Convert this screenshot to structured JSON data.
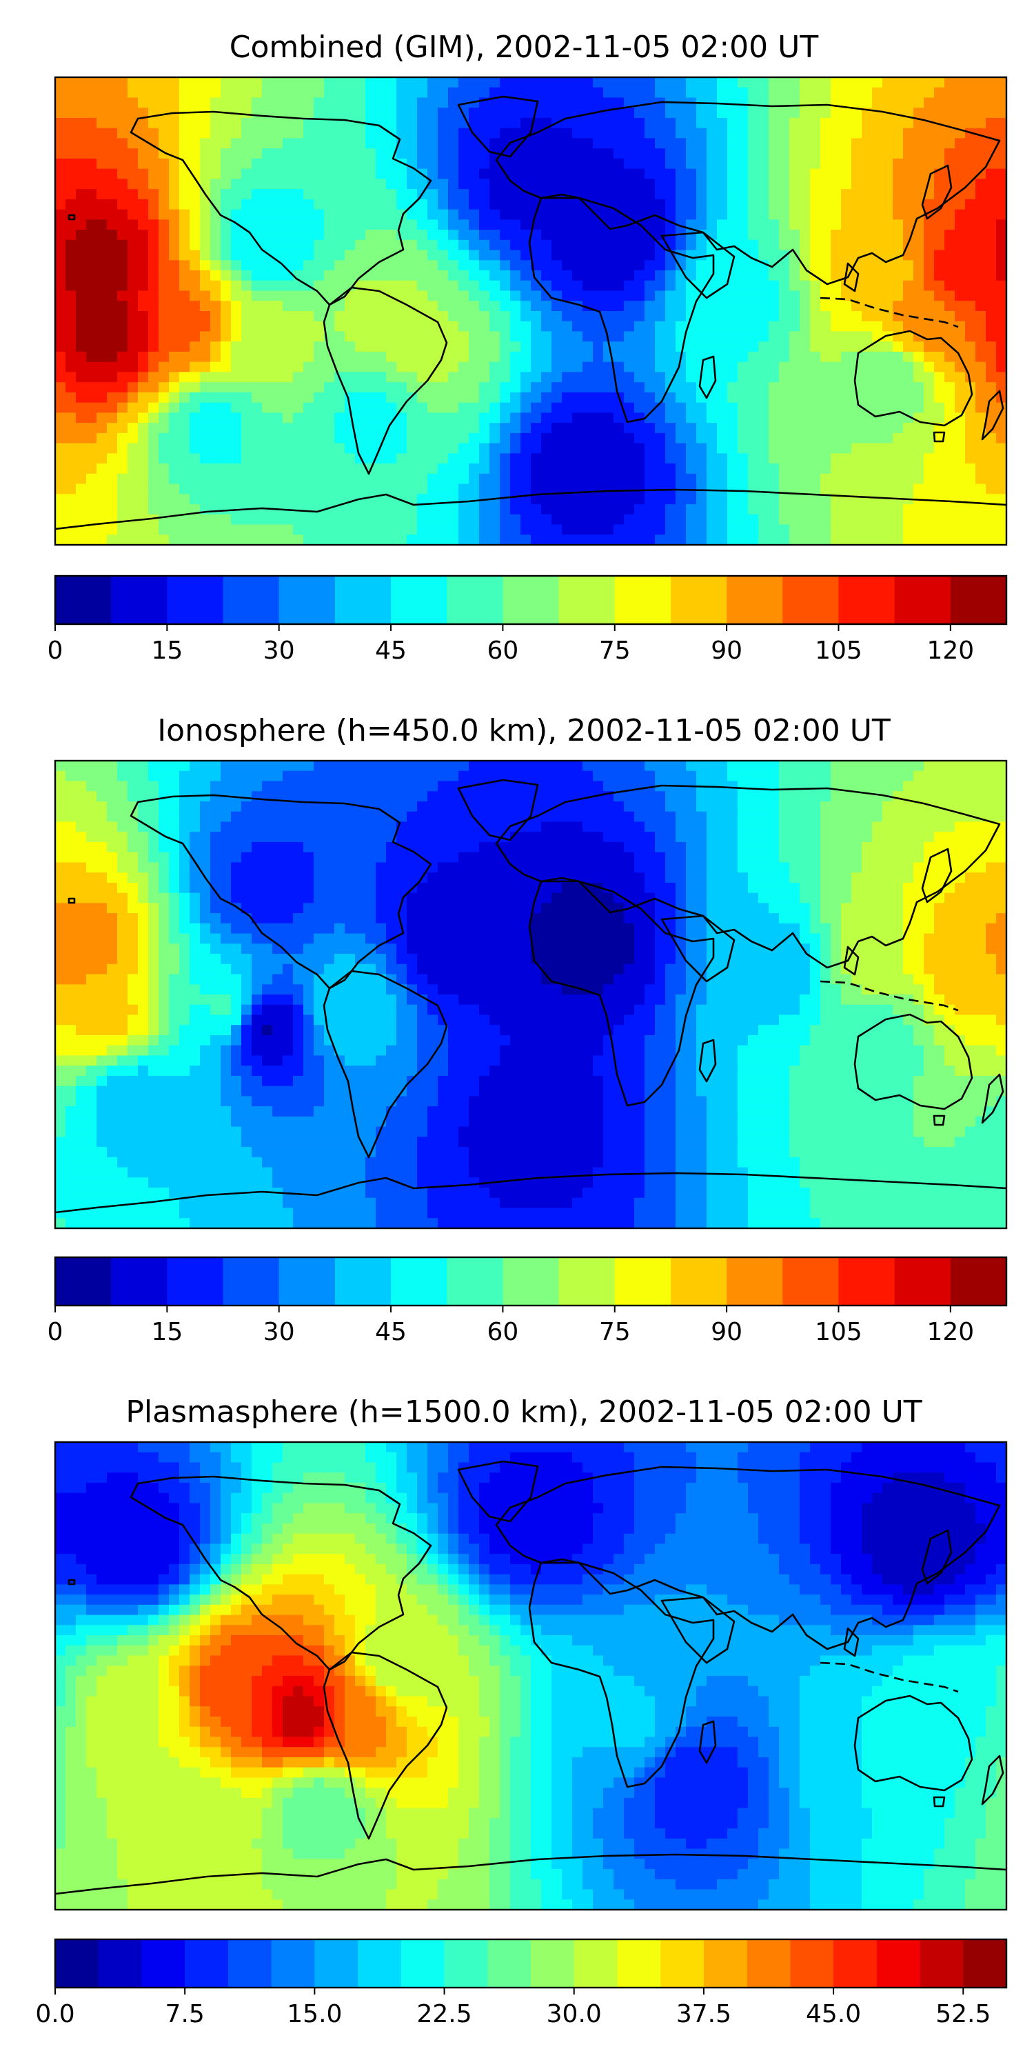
{
  "chart_data": [
    {
      "type": "heatmap",
      "title": "Combined (GIM), 2002-11-05 02:00 UT",
      "map": "world-equirectangular",
      "grid": false,
      "colormap": "jet",
      "colorbar": {
        "placement": "bottom",
        "min": 0,
        "max": 127.5,
        "step": 7.5,
        "ticks": [
          0,
          15,
          30,
          45,
          60,
          75,
          90,
          105,
          120
        ],
        "tick_labels": [
          "0",
          "15",
          "30",
          "45",
          "60",
          "75",
          "90",
          "105",
          "120"
        ]
      },
      "features": [
        {
          "lon": -165,
          "lat": 18,
          "value": 125
        },
        {
          "lon": -160,
          "lat": -8,
          "value": 124
        },
        {
          "lon": -130,
          "lat": -5,
          "value": 100
        },
        {
          "lon": -100,
          "lat": -10,
          "value": 70
        },
        {
          "lon": -55,
          "lat": -5,
          "value": 70
        },
        {
          "lon": -40,
          "lat": -15,
          "value": 70
        },
        {
          "lon": 130,
          "lat": 15,
          "value": 85
        },
        {
          "lon": 165,
          "lat": 15,
          "value": 110
        },
        {
          "lon": 150,
          "lat": -5,
          "value": 95
        },
        {
          "lon": 135,
          "lat": -25,
          "value": 60
        },
        {
          "lon": 80,
          "lat": 5,
          "value": 50
        },
        {
          "lon": -120,
          "lat": -45,
          "value": 50
        },
        {
          "lon": -60,
          "lat": -40,
          "value": 50
        },
        {
          "lon": -100,
          "lat": 25,
          "value": 45
        },
        {
          "lon": 0,
          "lat": 50,
          "value": 12
        },
        {
          "lon": 30,
          "lat": 30,
          "value": 8
        },
        {
          "lon": 20,
          "lat": -60,
          "value": 10
        }
      ]
    },
    {
      "type": "heatmap",
      "title": "Ionosphere  (h=450.0 km), 2002-11-05 02:00 UT",
      "map": "world-equirectangular",
      "grid": false,
      "colormap": "jet",
      "colorbar": {
        "placement": "bottom",
        "min": 0,
        "max": 127.5,
        "step": 7.5,
        "ticks": [
          0,
          15,
          30,
          45,
          60,
          75,
          90,
          105,
          120
        ],
        "tick_labels": [
          "0",
          "15",
          "30",
          "45",
          "60",
          "75",
          "90",
          "105",
          "120"
        ]
      },
      "features": [
        {
          "lon": -170,
          "lat": 18,
          "value": 95
        },
        {
          "lon": -160,
          "lat": -8,
          "value": 85
        },
        {
          "lon": -115,
          "lat": -5,
          "value": 55
        },
        {
          "lon": -100,
          "lat": -12,
          "value": 5
        },
        {
          "lon": -70,
          "lat": -5,
          "value": 45
        },
        {
          "lon": 130,
          "lat": 15,
          "value": 75
        },
        {
          "lon": 165,
          "lat": 12,
          "value": 90
        },
        {
          "lon": 130,
          "lat": -15,
          "value": 55
        },
        {
          "lon": 95,
          "lat": 10,
          "value": 40
        },
        {
          "lon": -150,
          "lat": -40,
          "value": 40
        },
        {
          "lon": -30,
          "lat": 20,
          "value": 10
        },
        {
          "lon": 20,
          "lat": 20,
          "value": 5
        },
        {
          "lon": 0,
          "lat": -50,
          "value": 12
        },
        {
          "lon": -100,
          "lat": 40,
          "value": 20
        }
      ]
    },
    {
      "type": "heatmap",
      "title": "Plasmasphere (h=1500.0 km), 2002-11-05 02:00 UT",
      "map": "world-equirectangular",
      "grid": false,
      "colormap": "jet",
      "colorbar": {
        "placement": "bottom",
        "min": 0,
        "max": 55,
        "step": 2.5,
        "ticks": [
          0,
          7.5,
          15,
          22.5,
          30,
          37.5,
          45,
          52.5
        ],
        "tick_labels": [
          "0.0",
          "7.5",
          "15.0",
          "22.5",
          "30.0",
          "37.5",
          "45.0",
          "52.5"
        ]
      },
      "features": [
        {
          "lon": -85,
          "lat": -15,
          "value": 53
        },
        {
          "lon": -110,
          "lat": -5,
          "value": 45
        },
        {
          "lon": -150,
          "lat": -15,
          "value": 32
        },
        {
          "lon": -70,
          "lat": -15,
          "value": 42
        },
        {
          "lon": -130,
          "lat": -55,
          "value": 30
        },
        {
          "lon": -80,
          "lat": -50,
          "value": 25
        },
        {
          "lon": -50,
          "lat": 5,
          "value": 30
        },
        {
          "lon": 160,
          "lat": -10,
          "value": 22
        },
        {
          "lon": 130,
          "lat": -30,
          "value": 20
        },
        {
          "lon": 40,
          "lat": -20,
          "value": 18
        },
        {
          "lon": -150,
          "lat": 50,
          "value": 5
        },
        {
          "lon": 150,
          "lat": 50,
          "value": 3
        },
        {
          "lon": 60,
          "lat": -40,
          "value": 8
        },
        {
          "lon": 0,
          "lat": 60,
          "value": 6
        }
      ]
    }
  ],
  "icons": {
    "coastline": "world-coastline-icon"
  }
}
